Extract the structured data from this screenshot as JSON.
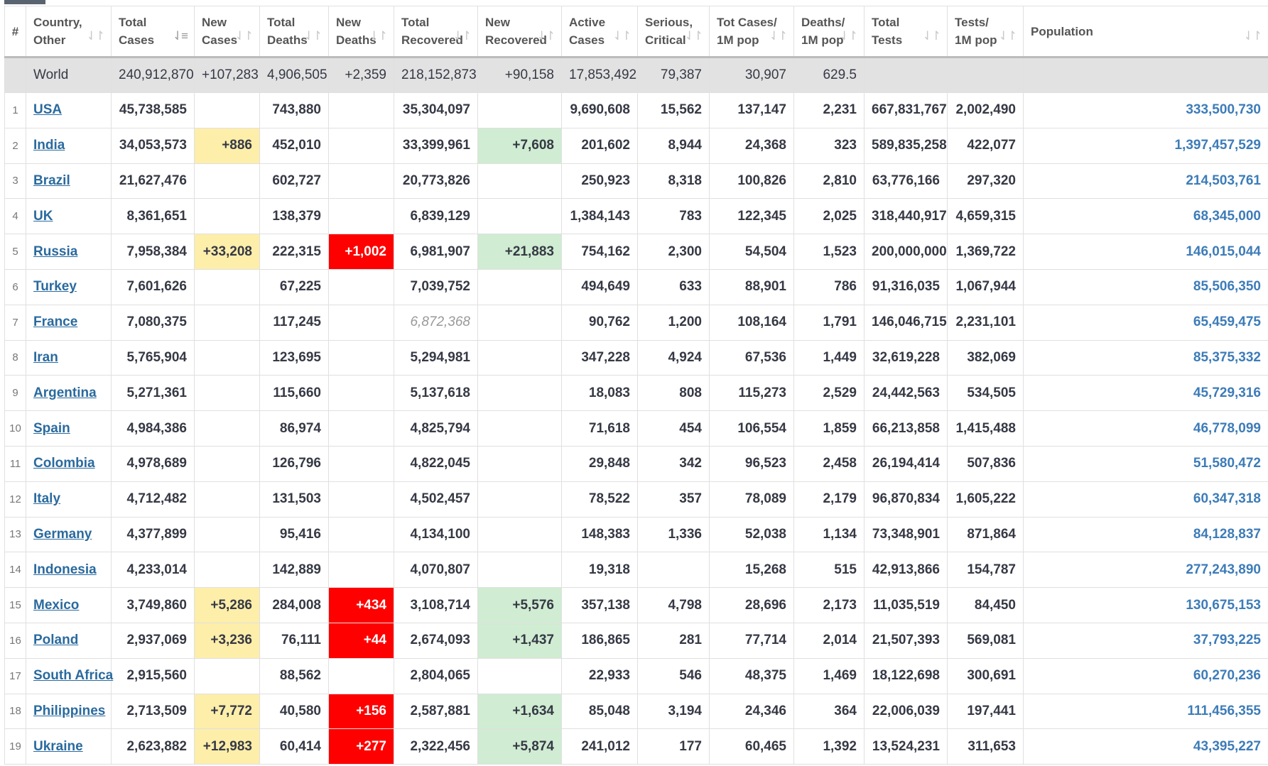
{
  "headers": [
    {
      "label": "#",
      "sort": ""
    },
    {
      "label": "Country,\nOther",
      "sort": "⇃↾"
    },
    {
      "label": "Total\nCases",
      "sort": "⇃≡"
    },
    {
      "label": "New\nCases",
      "sort": "⇃↾"
    },
    {
      "label": "Total\nDeaths",
      "sort": "⇃↾"
    },
    {
      "label": "New\nDeaths",
      "sort": "⇃↾"
    },
    {
      "label": "Total\nRecovered",
      "sort": "⇃↾"
    },
    {
      "label": "New\nRecovered",
      "sort": "⇃↾"
    },
    {
      "label": "Active\nCases",
      "sort": "⇃↾"
    },
    {
      "label": "Serious,\nCritical",
      "sort": "⇃↾"
    },
    {
      "label": "Tot Cases/\n1M pop",
      "sort": "⇃↾"
    },
    {
      "label": "Deaths/\n1M pop",
      "sort": "⇃↾"
    },
    {
      "label": "Total\nTests",
      "sort": "⇃↾"
    },
    {
      "label": "Tests/\n1M pop",
      "sort": "⇃↾"
    },
    {
      "label": "Population",
      "sort": "⇃↾"
    }
  ],
  "world": {
    "label": "World",
    "total_cases": "240,912,870",
    "new_cases": "+107,283",
    "total_deaths": "4,906,505",
    "new_deaths": "+2,359",
    "total_recovered": "218,152,873",
    "new_recovered": "+90,158",
    "active": "17,853,492",
    "critical": "79,387",
    "cases_per_m": "30,907",
    "deaths_per_m": "629.5",
    "tests": "",
    "tests_per_m": "",
    "population": ""
  },
  "rows": [
    {
      "n": "1",
      "country": "USA",
      "total_cases": "45,738,585",
      "new_cases": "",
      "total_deaths": "743,880",
      "new_deaths": "",
      "total_recovered": "35,304,097",
      "new_recovered": "",
      "active": "9,690,608",
      "critical": "15,562",
      "cases_per_m": "137,147",
      "deaths_per_m": "2,231",
      "tests": "667,831,767",
      "tests_per_m": "2,002,490",
      "population": "333,500,730"
    },
    {
      "n": "2",
      "country": "India",
      "total_cases": "34,053,573",
      "new_cases": "+886",
      "total_deaths": "452,010",
      "new_deaths": "",
      "total_recovered": "33,399,961",
      "new_recovered": "+7,608",
      "active": "201,602",
      "critical": "8,944",
      "cases_per_m": "24,368",
      "deaths_per_m": "323",
      "tests": "589,835,258",
      "tests_per_m": "422,077",
      "population": "1,397,457,529"
    },
    {
      "n": "3",
      "country": "Brazil",
      "total_cases": "21,627,476",
      "new_cases": "",
      "total_deaths": "602,727",
      "new_deaths": "",
      "total_recovered": "20,773,826",
      "new_recovered": "",
      "active": "250,923",
      "critical": "8,318",
      "cases_per_m": "100,826",
      "deaths_per_m": "2,810",
      "tests": "63,776,166",
      "tests_per_m": "297,320",
      "population": "214,503,761"
    },
    {
      "n": "4",
      "country": "UK",
      "total_cases": "8,361,651",
      "new_cases": "",
      "total_deaths": "138,379",
      "new_deaths": "",
      "total_recovered": "6,839,129",
      "new_recovered": "",
      "active": "1,384,143",
      "critical": "783",
      "cases_per_m": "122,345",
      "deaths_per_m": "2,025",
      "tests": "318,440,917",
      "tests_per_m": "4,659,315",
      "population": "68,345,000"
    },
    {
      "n": "5",
      "country": "Russia",
      "total_cases": "7,958,384",
      "new_cases": "+33,208",
      "total_deaths": "222,315",
      "new_deaths": "+1,002",
      "total_recovered": "6,981,907",
      "new_recovered": "+21,883",
      "active": "754,162",
      "critical": "2,300",
      "cases_per_m": "54,504",
      "deaths_per_m": "1,523",
      "tests": "200,000,000",
      "tests_per_m": "1,369,722",
      "population": "146,015,044"
    },
    {
      "n": "6",
      "country": "Turkey",
      "total_cases": "7,601,626",
      "new_cases": "",
      "total_deaths": "67,225",
      "new_deaths": "",
      "total_recovered": "7,039,752",
      "new_recovered": "",
      "active": "494,649",
      "critical": "633",
      "cases_per_m": "88,901",
      "deaths_per_m": "786",
      "tests": "91,316,035",
      "tests_per_m": "1,067,944",
      "population": "85,506,350"
    },
    {
      "n": "7",
      "country": "France",
      "total_cases": "7,080,375",
      "new_cases": "",
      "total_deaths": "117,245",
      "new_deaths": "",
      "total_recovered": "6,872,368",
      "recovered_estimated": true,
      "new_recovered": "",
      "active": "90,762",
      "critical": "1,200",
      "cases_per_m": "108,164",
      "deaths_per_m": "1,791",
      "tests": "146,046,715",
      "tests_per_m": "2,231,101",
      "population": "65,459,475"
    },
    {
      "n": "8",
      "country": "Iran",
      "total_cases": "5,765,904",
      "new_cases": "",
      "total_deaths": "123,695",
      "new_deaths": "",
      "total_recovered": "5,294,981",
      "new_recovered": "",
      "active": "347,228",
      "critical": "4,924",
      "cases_per_m": "67,536",
      "deaths_per_m": "1,449",
      "tests": "32,619,228",
      "tests_per_m": "382,069",
      "population": "85,375,332"
    },
    {
      "n": "9",
      "country": "Argentina",
      "total_cases": "5,271,361",
      "new_cases": "",
      "total_deaths": "115,660",
      "new_deaths": "",
      "total_recovered": "5,137,618",
      "new_recovered": "",
      "active": "18,083",
      "critical": "808",
      "cases_per_m": "115,273",
      "deaths_per_m": "2,529",
      "tests": "24,442,563",
      "tests_per_m": "534,505",
      "population": "45,729,316"
    },
    {
      "n": "10",
      "country": "Spain",
      "total_cases": "4,984,386",
      "new_cases": "",
      "total_deaths": "86,974",
      "new_deaths": "",
      "total_recovered": "4,825,794",
      "new_recovered": "",
      "active": "71,618",
      "critical": "454",
      "cases_per_m": "106,554",
      "deaths_per_m": "1,859",
      "tests": "66,213,858",
      "tests_per_m": "1,415,488",
      "population": "46,778,099"
    },
    {
      "n": "11",
      "country": "Colombia",
      "total_cases": "4,978,689",
      "new_cases": "",
      "total_deaths": "126,796",
      "new_deaths": "",
      "total_recovered": "4,822,045",
      "new_recovered": "",
      "active": "29,848",
      "critical": "342",
      "cases_per_m": "96,523",
      "deaths_per_m": "2,458",
      "tests": "26,194,414",
      "tests_per_m": "507,836",
      "population": "51,580,472"
    },
    {
      "n": "12",
      "country": "Italy",
      "total_cases": "4,712,482",
      "new_cases": "",
      "total_deaths": "131,503",
      "new_deaths": "",
      "total_recovered": "4,502,457",
      "new_recovered": "",
      "active": "78,522",
      "critical": "357",
      "cases_per_m": "78,089",
      "deaths_per_m": "2,179",
      "tests": "96,870,834",
      "tests_per_m": "1,605,222",
      "population": "60,347,318"
    },
    {
      "n": "13",
      "country": "Germany",
      "total_cases": "4,377,899",
      "new_cases": "",
      "total_deaths": "95,416",
      "new_deaths": "",
      "total_recovered": "4,134,100",
      "new_recovered": "",
      "active": "148,383",
      "critical": "1,336",
      "cases_per_m": "52,038",
      "deaths_per_m": "1,134",
      "tests": "73,348,901",
      "tests_per_m": "871,864",
      "population": "84,128,837"
    },
    {
      "n": "14",
      "country": "Indonesia",
      "total_cases": "4,233,014",
      "new_cases": "",
      "total_deaths": "142,889",
      "new_deaths": "",
      "total_recovered": "4,070,807",
      "new_recovered": "",
      "active": "19,318",
      "critical": "",
      "cases_per_m": "15,268",
      "deaths_per_m": "515",
      "tests": "42,913,866",
      "tests_per_m": "154,787",
      "population": "277,243,890"
    },
    {
      "n": "15",
      "country": "Mexico",
      "total_cases": "3,749,860",
      "new_cases": "+5,286",
      "total_deaths": "284,008",
      "new_deaths": "+434",
      "total_recovered": "3,108,714",
      "new_recovered": "+5,576",
      "active": "357,138",
      "critical": "4,798",
      "cases_per_m": "28,696",
      "deaths_per_m": "2,173",
      "tests": "11,035,519",
      "tests_per_m": "84,450",
      "population": "130,675,153"
    },
    {
      "n": "16",
      "country": "Poland",
      "total_cases": "2,937,069",
      "new_cases": "+3,236",
      "total_deaths": "76,111",
      "new_deaths": "+44",
      "total_recovered": "2,674,093",
      "new_recovered": "+1,437",
      "active": "186,865",
      "critical": "281",
      "cases_per_m": "77,714",
      "deaths_per_m": "2,014",
      "tests": "21,507,393",
      "tests_per_m": "569,081",
      "population": "37,793,225"
    },
    {
      "n": "17",
      "country": "South Africa",
      "total_cases": "2,915,560",
      "new_cases": "",
      "total_deaths": "88,562",
      "new_deaths": "",
      "total_recovered": "2,804,065",
      "new_recovered": "",
      "active": "22,933",
      "critical": "546",
      "cases_per_m": "48,375",
      "deaths_per_m": "1,469",
      "tests": "18,122,698",
      "tests_per_m": "300,691",
      "population": "60,270,236"
    },
    {
      "n": "18",
      "country": "Philippines",
      "total_cases": "2,713,509",
      "new_cases": "+7,772",
      "total_deaths": "40,580",
      "new_deaths": "+156",
      "total_recovered": "2,587,881",
      "new_recovered": "+1,634",
      "active": "85,048",
      "critical": "3,194",
      "cases_per_m": "24,346",
      "deaths_per_m": "364",
      "tests": "22,006,039",
      "tests_per_m": "197,441",
      "population": "111,456,355"
    },
    {
      "n": "19",
      "country": "Ukraine",
      "total_cases": "2,623,882",
      "new_cases": "+12,983",
      "total_deaths": "60,414",
      "new_deaths": "+277",
      "total_recovered": "2,322,456",
      "new_recovered": "+5,874",
      "active": "241,012",
      "critical": "177",
      "cases_per_m": "60,465",
      "deaths_per_m": "1,392",
      "tests": "13,524,231",
      "tests_per_m": "311,653",
      "population": "43,395,227"
    }
  ],
  "colors": {
    "new_cases_bg": "#fdeeaa",
    "new_deaths_bg": "#ff0000",
    "new_recovered_bg": "#d0ecd2",
    "link": "#2a6a9e",
    "population": "#3d7cb8",
    "world_bg": "#e2e2e2"
  }
}
